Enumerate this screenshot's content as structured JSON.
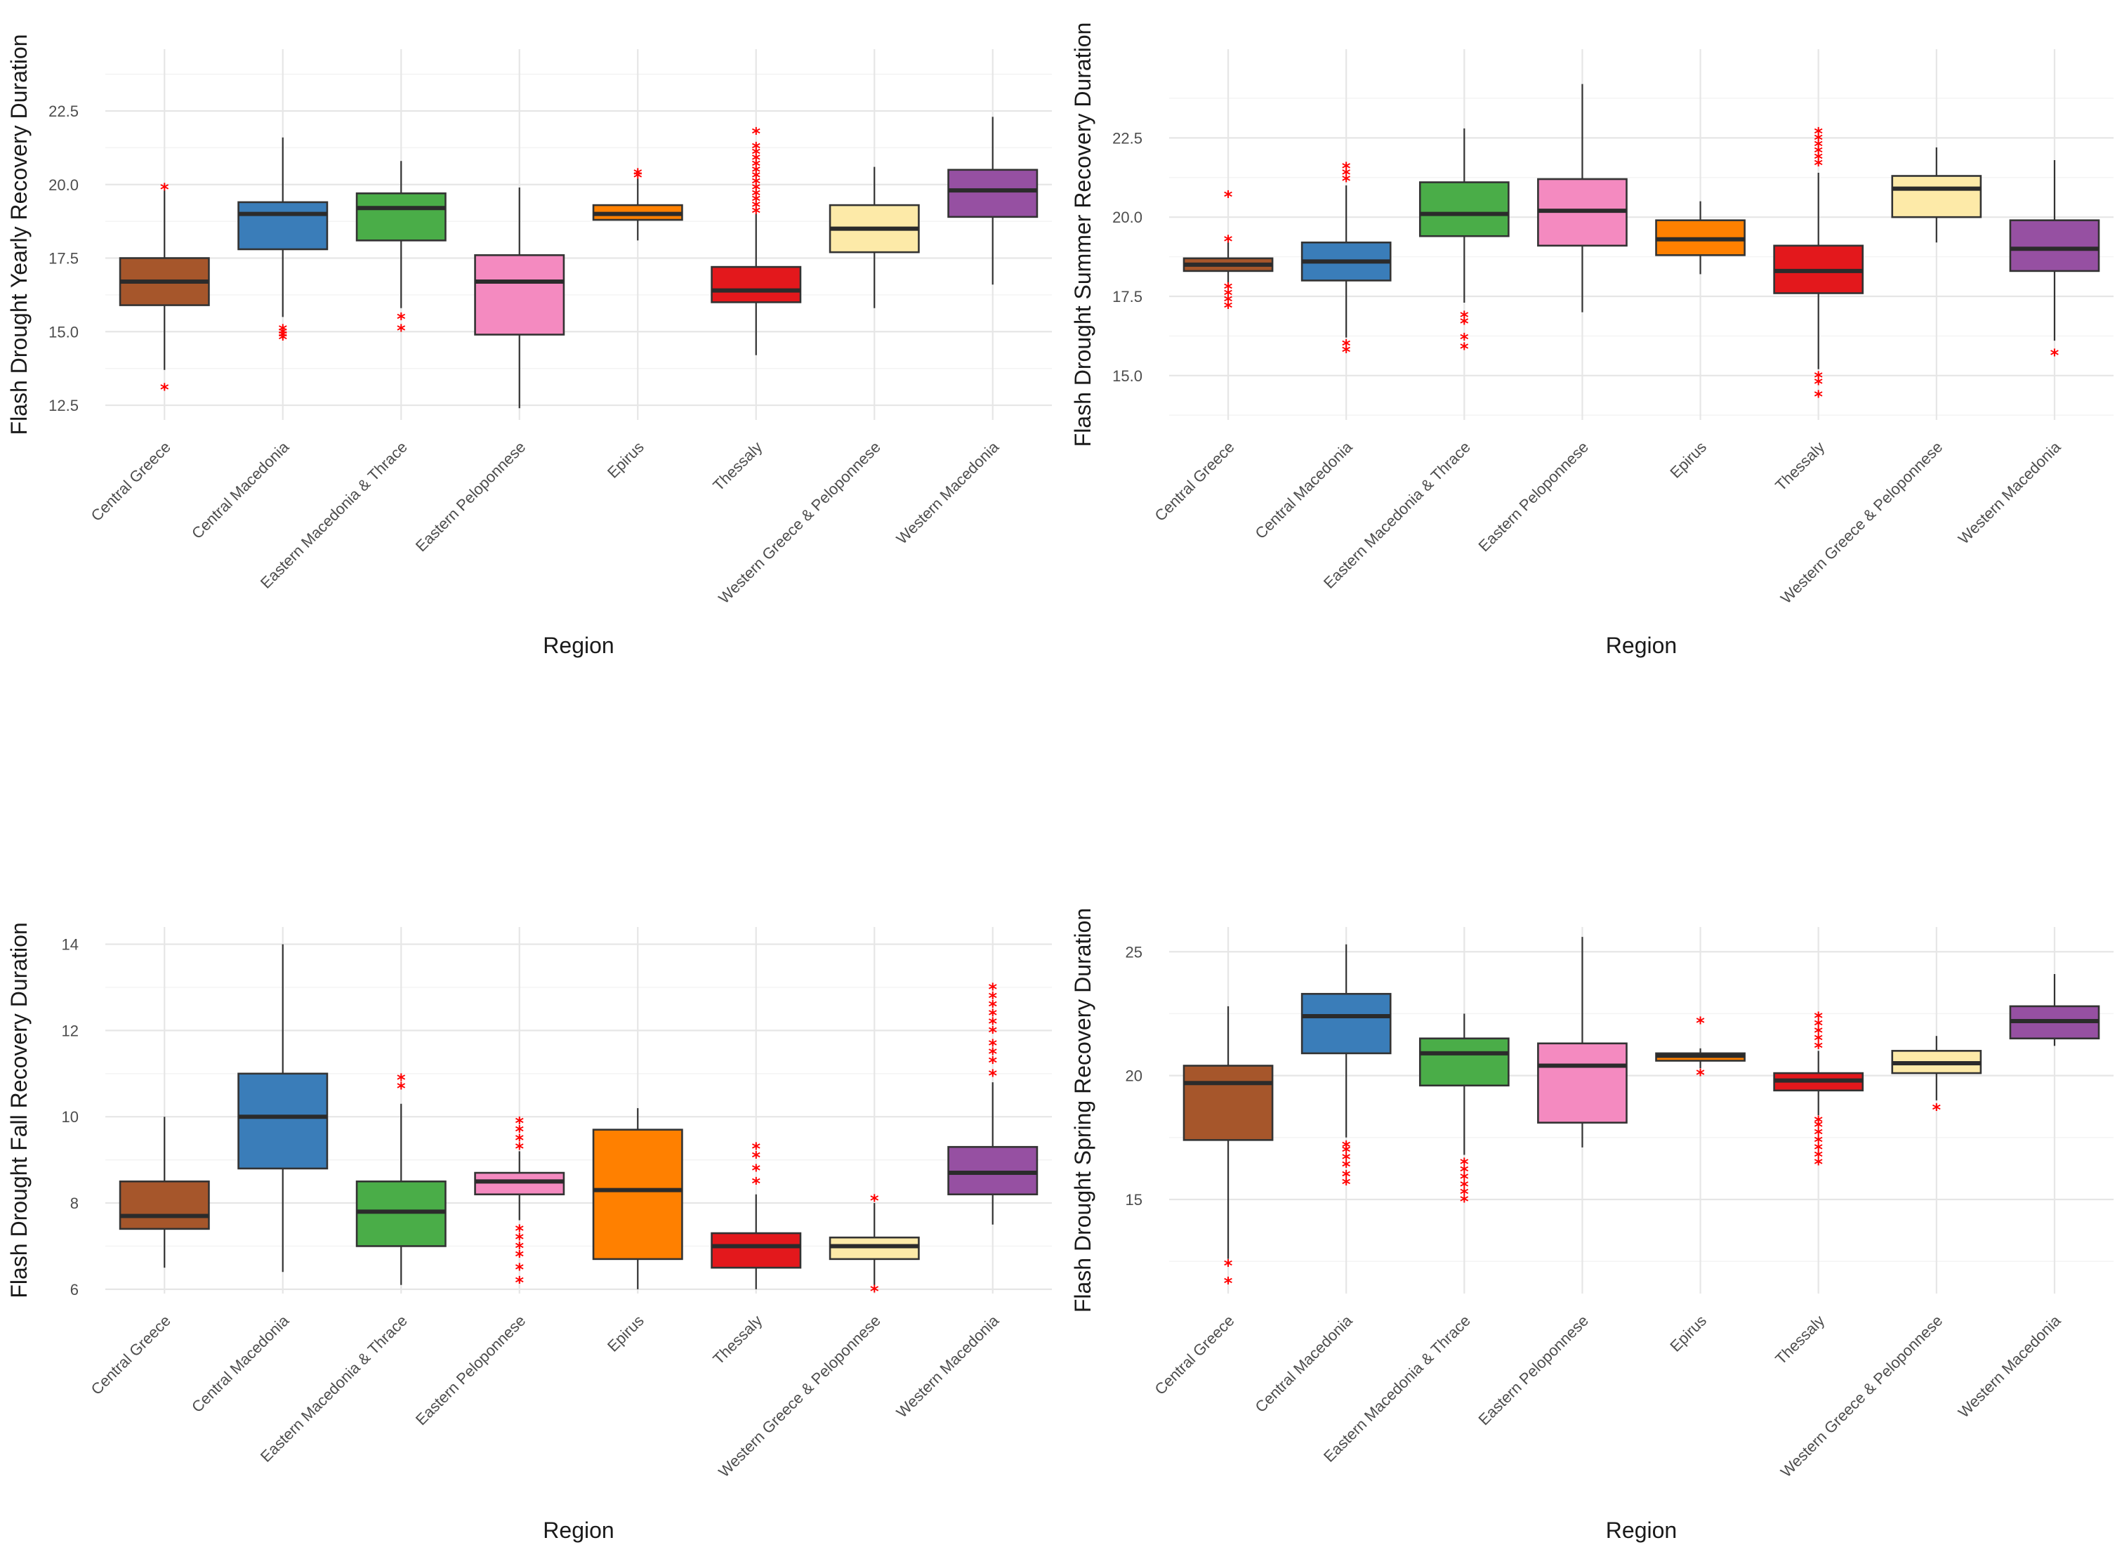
{
  "chart_data": [
    {
      "type": "box",
      "ylabel": "Flash Drought Yearly Recovery Duration",
      "xlabel": "Region",
      "ylim": [
        12,
        24.6
      ],
      "yticks": [
        12.5,
        15.0,
        17.5,
        20.0,
        22.5
      ],
      "ytick_labels": [
        "12.5",
        "15.0",
        "17.5",
        "20.0",
        "22.5"
      ],
      "categories": [
        "Central Greece",
        "Central Macedonia",
        "Eastern Macedonia & Thrace",
        "Eastern Peloponnese",
        "Epirus",
        "Thessaly",
        "Western Greece & Peloponnese",
        "Western Macedonia"
      ],
      "boxes": [
        {
          "q1": 15.9,
          "median": 16.7,
          "q3": 17.5,
          "lo": 13.7,
          "hi": 19.8,
          "outliers": [
            13.1,
            19.9
          ]
        },
        {
          "q1": 17.8,
          "median": 19.0,
          "q3": 19.4,
          "lo": 15.5,
          "hi": 21.6,
          "outliers": [
            14.8,
            14.9,
            15.0,
            15.1
          ]
        },
        {
          "q1": 18.1,
          "median": 19.2,
          "q3": 19.7,
          "lo": 15.8,
          "hi": 20.8,
          "outliers": [
            15.1,
            15.5
          ]
        },
        {
          "q1": 14.9,
          "median": 16.7,
          "q3": 17.6,
          "lo": 12.4,
          "hi": 19.9,
          "outliers": []
        },
        {
          "q1": 18.8,
          "median": 19.0,
          "q3": 19.3,
          "lo": 18.1,
          "hi": 20.2,
          "outliers": [
            20.3,
            20.4
          ]
        },
        {
          "q1": 16.0,
          "median": 16.4,
          "q3": 17.2,
          "lo": 14.2,
          "hi": 19.0,
          "outliers": [
            19.1,
            19.3,
            19.5,
            19.7,
            19.9,
            20.1,
            20.3,
            20.5,
            20.7,
            20.9,
            21.1,
            21.3,
            21.8
          ]
        },
        {
          "q1": 17.7,
          "median": 18.5,
          "q3": 19.3,
          "lo": 15.8,
          "hi": 20.6,
          "outliers": []
        },
        {
          "q1": 18.9,
          "median": 19.8,
          "q3": 20.5,
          "lo": 16.6,
          "hi": 22.3,
          "outliers": []
        }
      ]
    },
    {
      "type": "box",
      "ylabel": "Flash Drought Summer Recovery Duration",
      "xlabel": "Region",
      "ylim": [
        13.6,
        25.3
      ],
      "yticks": [
        15.0,
        17.5,
        20.0,
        22.5
      ],
      "ytick_labels": [
        "15.0",
        "17.5",
        "20.0",
        "22.5"
      ],
      "categories": [
        "Central Greece",
        "Central Macedonia",
        "Eastern Macedonia & Thrace",
        "Eastern Peloponnese",
        "Epirus",
        "Thessaly",
        "Western Greece & Peloponnese",
        "Western Macedonia"
      ],
      "boxes": [
        {
          "q1": 18.3,
          "median": 18.5,
          "q3": 18.7,
          "lo": 17.9,
          "hi": 19.2,
          "outliers": [
            17.2,
            17.4,
            17.6,
            17.8,
            19.3,
            20.7
          ]
        },
        {
          "q1": 18.0,
          "median": 18.6,
          "q3": 19.2,
          "lo": 16.2,
          "hi": 21.0,
          "outliers": [
            15.8,
            16.0,
            21.2,
            21.4,
            21.6
          ]
        },
        {
          "q1": 19.4,
          "median": 20.1,
          "q3": 21.1,
          "lo": 17.3,
          "hi": 22.8,
          "outliers": [
            15.9,
            16.2,
            16.7,
            16.9
          ]
        },
        {
          "q1": 19.1,
          "median": 20.2,
          "q3": 21.2,
          "lo": 17.0,
          "hi": 24.2,
          "outliers": []
        },
        {
          "q1": 18.8,
          "median": 19.3,
          "q3": 19.9,
          "lo": 18.2,
          "hi": 20.5,
          "outliers": []
        },
        {
          "q1": 17.6,
          "median": 18.3,
          "q3": 19.1,
          "lo": 15.2,
          "hi": 21.4,
          "outliers": [
            14.4,
            14.8,
            15.0,
            21.7,
            21.9,
            22.1,
            22.3,
            22.5,
            22.7
          ]
        },
        {
          "q1": 20.0,
          "median": 20.9,
          "q3": 21.3,
          "lo": 19.2,
          "hi": 22.2,
          "outliers": []
        },
        {
          "q1": 18.3,
          "median": 19.0,
          "q3": 19.9,
          "lo": 16.1,
          "hi": 21.8,
          "outliers": [
            15.7
          ]
        }
      ]
    },
    {
      "type": "box",
      "ylabel": "Flash Drought Fall Recovery Duration",
      "xlabel": "Region",
      "ylim": [
        5.9,
        14.4
      ],
      "yticks": [
        6,
        8,
        10,
        12,
        14
      ],
      "ytick_labels": [
        "6",
        "8",
        "10",
        "12",
        "14"
      ],
      "categories": [
        "Central Greece",
        "Central Macedonia",
        "Eastern Macedonia & Thrace",
        "Eastern Peloponnese",
        "Epirus",
        "Thessaly",
        "Western Greece & Peloponnese",
        "Western Macedonia"
      ],
      "boxes": [
        {
          "q1": 7.4,
          "median": 7.7,
          "q3": 8.5,
          "lo": 6.5,
          "hi": 10.0,
          "outliers": []
        },
        {
          "q1": 8.8,
          "median": 10.0,
          "q3": 11.0,
          "lo": 6.4,
          "hi": 14.0,
          "outliers": []
        },
        {
          "q1": 7.0,
          "median": 7.8,
          "q3": 8.5,
          "lo": 6.1,
          "hi": 10.3,
          "outliers": [
            10.7,
            10.9
          ]
        },
        {
          "q1": 8.2,
          "median": 8.5,
          "q3": 8.7,
          "lo": 7.6,
          "hi": 9.2,
          "outliers": [
            6.2,
            6.5,
            6.8,
            7.0,
            7.2,
            7.4,
            9.3,
            9.5,
            9.7,
            9.9
          ]
        },
        {
          "q1": 6.7,
          "median": 8.3,
          "q3": 9.7,
          "lo": 6.0,
          "hi": 10.2,
          "outliers": []
        },
        {
          "q1": 6.5,
          "median": 7.0,
          "q3": 7.3,
          "lo": 6.0,
          "hi": 8.2,
          "outliers": [
            8.5,
            8.8,
            9.1,
            9.3
          ]
        },
        {
          "q1": 6.7,
          "median": 7.0,
          "q3": 7.2,
          "lo": 6.1,
          "hi": 8.0,
          "outliers": [
            6.0,
            8.1
          ]
        },
        {
          "q1": 8.2,
          "median": 8.7,
          "q3": 9.3,
          "lo": 7.5,
          "hi": 10.8,
          "outliers": [
            11.0,
            11.3,
            11.5,
            11.7,
            12.0,
            12.2,
            12.4,
            12.6,
            12.8,
            13.0
          ]
        }
      ]
    },
    {
      "type": "box",
      "ylabel": "Flash Drought Spring Recovery Duration",
      "xlabel": "Region",
      "ylim": [
        11.2,
        26.0
      ],
      "yticks": [
        15,
        20,
        25
      ],
      "ytick_labels": [
        "15",
        "20",
        "25"
      ],
      "categories": [
        "Central Greece",
        "Central Macedonia",
        "Eastern Macedonia & Thrace",
        "Eastern Peloponnese",
        "Epirus",
        "Thessaly",
        "Western Greece & Peloponnese",
        "Western Macedonia"
      ],
      "boxes": [
        {
          "q1": 17.4,
          "median": 19.7,
          "q3": 20.4,
          "lo": 12.6,
          "hi": 22.8,
          "outliers": [
            11.7,
            12.4
          ]
        },
        {
          "q1": 20.9,
          "median": 22.4,
          "q3": 23.3,
          "lo": 17.5,
          "hi": 25.3,
          "outliers": [
            15.7,
            16.0,
            16.4,
            16.7,
            17.0,
            17.2
          ]
        },
        {
          "q1": 19.6,
          "median": 20.9,
          "q3": 21.5,
          "lo": 16.8,
          "hi": 22.5,
          "outliers": [
            15.0,
            15.3,
            15.6,
            15.9,
            16.2,
            16.5
          ]
        },
        {
          "q1": 18.1,
          "median": 20.4,
          "q3": 21.3,
          "lo": 17.1,
          "hi": 25.6,
          "outliers": []
        },
        {
          "q1": 20.6,
          "median": 20.8,
          "q3": 20.9,
          "lo": 20.3,
          "hi": 21.1,
          "outliers": [
            20.1,
            22.2
          ]
        },
        {
          "q1": 19.4,
          "median": 19.8,
          "q3": 20.1,
          "lo": 18.4,
          "hi": 21.0,
          "outliers": [
            16.5,
            16.8,
            17.1,
            17.4,
            17.7,
            18.0,
            18.2,
            21.2,
            21.5,
            21.8,
            22.1,
            22.4
          ]
        },
        {
          "q1": 20.1,
          "median": 20.5,
          "q3": 21.0,
          "lo": 19.0,
          "hi": 21.6,
          "outliers": [
            18.7
          ]
        },
        {
          "q1": 21.5,
          "median": 22.2,
          "q3": 22.8,
          "lo": 21.2,
          "hi": 24.1,
          "outliers": []
        }
      ]
    }
  ],
  "colors": [
    "#a6562b",
    "#3a7db9",
    "#4aad48",
    "#f48ac0",
    "#ff8000",
    "#e3181c",
    "#fdeaa8",
    "#9650a2"
  ],
  "outlier_color": "#ff0000",
  "outlier_glyph": "*"
}
